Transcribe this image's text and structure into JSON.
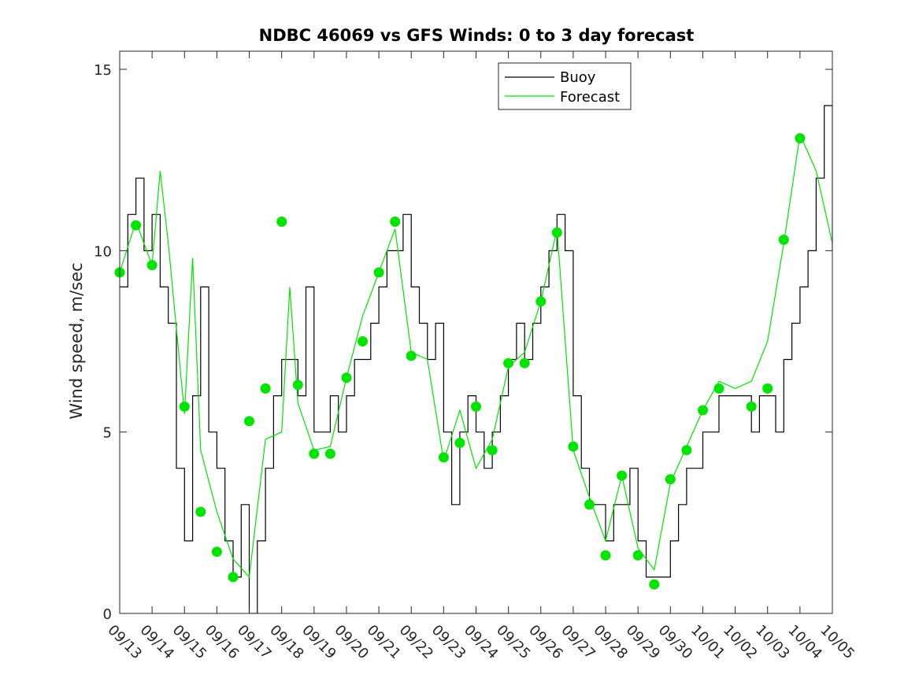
{
  "chart_data": {
    "type": "line",
    "title": "NDBC 46069 vs GFS Winds: 0 to 3 day forecast",
    "ylabel": "Wind speed, m/sec",
    "xlabel": "",
    "ylim": [
      0,
      15.5
    ],
    "yticks": [
      0,
      5,
      10,
      15
    ],
    "xlim": [
      "09/13",
      "10/05"
    ],
    "xticks": [
      "09/13",
      "09/14",
      "09/15",
      "09/16",
      "09/17",
      "09/18",
      "09/19",
      "09/20",
      "09/21",
      "09/22",
      "09/23",
      "09/24",
      "09/25",
      "09/26",
      "09/27",
      "09/28",
      "09/29",
      "09/30",
      "10/01",
      "10/02",
      "10/03",
      "10/04",
      "10/05"
    ],
    "legend_position": "top-right",
    "grid": false,
    "colors": {
      "buoy": "#000000",
      "forecast": "#00e400",
      "markers": "#00e400"
    },
    "series": [
      {
        "name": "Buoy",
        "style": "step-line",
        "x": [
          "09/13 00:00",
          "09/13 06:00",
          "09/13 12:00",
          "09/13 18:00",
          "09/14 00:00",
          "09/14 06:00",
          "09/14 12:00",
          "09/14 18:00",
          "09/15 00:00",
          "09/15 06:00",
          "09/15 12:00",
          "09/15 18:00",
          "09/16 00:00",
          "09/16 06:00",
          "09/16 12:00",
          "09/16 18:00",
          "09/17 00:00",
          "09/17 06:00",
          "09/17 12:00",
          "09/17 18:00",
          "09/18 00:00",
          "09/18 06:00",
          "09/18 12:00",
          "09/18 18:00",
          "09/19 00:00",
          "09/19 06:00",
          "09/19 12:00",
          "09/19 18:00",
          "09/20 00:00",
          "09/20 06:00",
          "09/20 12:00",
          "09/20 18:00",
          "09/21 00:00",
          "09/21 06:00",
          "09/21 12:00",
          "09/21 18:00",
          "09/22 00:00",
          "09/22 06:00",
          "09/22 12:00",
          "09/22 18:00",
          "09/23 00:00",
          "09/23 06:00",
          "09/23 12:00",
          "09/23 18:00",
          "09/24 00:00",
          "09/24 06:00",
          "09/24 12:00",
          "09/24 18:00",
          "09/25 00:00",
          "09/25 06:00",
          "09/25 12:00",
          "09/25 18:00",
          "09/26 00:00",
          "09/26 06:00",
          "09/26 12:00",
          "09/26 18:00",
          "09/27 00:00",
          "09/27 06:00",
          "09/27 12:00",
          "09/27 18:00",
          "09/28 00:00",
          "09/28 06:00",
          "09/28 12:00",
          "09/28 18:00",
          "09/29 00:00",
          "09/29 06:00",
          "09/29 12:00",
          "09/29 18:00",
          "09/30 00:00",
          "09/30 06:00",
          "09/30 12:00",
          "09/30 18:00",
          "10/01 00:00",
          "10/01 06:00",
          "10/01 12:00",
          "10/01 18:00",
          "10/02 00:00",
          "10/02 06:00",
          "10/02 12:00",
          "10/02 18:00",
          "10/03 00:00",
          "10/03 06:00",
          "10/03 12:00",
          "10/03 18:00",
          "10/04 00:00",
          "10/04 06:00",
          "10/04 12:00",
          "10/04 18:00",
          "10/05 00:00"
        ],
        "values": [
          9,
          11,
          12,
          10,
          11,
          9,
          8,
          4,
          2,
          6,
          9,
          5,
          4,
          2,
          1,
          3,
          0,
          2,
          4,
          6,
          7,
          7,
          6,
          9,
          5,
          5,
          6,
          5,
          6,
          7,
          7,
          8,
          9,
          10,
          10,
          11,
          9,
          8,
          7,
          8,
          5,
          3,
          5,
          6,
          5,
          4,
          5,
          6,
          7,
          8,
          7,
          8,
          9,
          10,
          11,
          10,
          6,
          4,
          3,
          3,
          2,
          3,
          3,
          4,
          2,
          1,
          1,
          1,
          2,
          3,
          4,
          4,
          5,
          5,
          6,
          6,
          6,
          6,
          5,
          6,
          6,
          5,
          7,
          8,
          9,
          10,
          12,
          14,
          10
        ]
      },
      {
        "name": "Forecast",
        "style": "line",
        "x": [
          "09/13 00:00",
          "09/13 12:00",
          "09/14 00:00",
          "09/14 06:00",
          "09/14 12:00",
          "09/15 00:00",
          "09/15 06:00",
          "09/15 12:00",
          "09/16 00:00",
          "09/16 12:00",
          "09/17 00:00",
          "09/17 12:00",
          "09/18 00:00",
          "09/18 06:00",
          "09/18 12:00",
          "09/19 00:00",
          "09/19 12:00",
          "09/20 00:00",
          "09/20 12:00",
          "09/21 00:00",
          "09/21 12:00",
          "09/22 00:00",
          "09/22 12:00",
          "09/23 00:00",
          "09/23 12:00",
          "09/24 00:00",
          "09/24 12:00",
          "09/25 00:00",
          "09/25 12:00",
          "09/26 00:00",
          "09/26 12:00",
          "09/27 00:00",
          "09/27 12:00",
          "09/28 00:00",
          "09/28 12:00",
          "09/29 00:00",
          "09/29 12:00",
          "09/30 00:00",
          "09/30 12:00",
          "10/01 00:00",
          "10/01 12:00",
          "10/02 00:00",
          "10/02 12:00",
          "10/03 00:00",
          "10/03 12:00",
          "10/04 00:00",
          "10/04 12:00",
          "10/05 00:00"
        ],
        "values": [
          9.4,
          10.8,
          9.6,
          12.2,
          10.2,
          5.5,
          9.8,
          4.5,
          2.8,
          1.5,
          1.0,
          4.8,
          5.0,
          9.0,
          5.8,
          4.5,
          4.6,
          6.5,
          8.2,
          9.4,
          10.6,
          7.2,
          7.0,
          4.2,
          5.6,
          4.0,
          4.8,
          6.8,
          7.2,
          8.6,
          10.6,
          4.5,
          3.2,
          2.0,
          3.8,
          1.8,
          1.2,
          3.6,
          4.6,
          5.6,
          6.4,
          6.2,
          6.4,
          7.5,
          10.2,
          13.2,
          12.2,
          10.2
        ]
      }
    ],
    "markers": {
      "name": "Forecast",
      "x": [
        "09/13 00:00",
        "09/13 12:00",
        "09/14 00:00",
        "09/15 00:00",
        "09/15 12:00",
        "09/16 00:00",
        "09/16 12:00",
        "09/17 00:00",
        "09/17 12:00",
        "09/18 00:00",
        "09/18 12:00",
        "09/19 00:00",
        "09/19 12:00",
        "09/20 00:00",
        "09/20 12:00",
        "09/21 00:00",
        "09/21 12:00",
        "09/22 00:00",
        "09/23 00:00",
        "09/23 12:00",
        "09/24 00:00",
        "09/24 12:00",
        "09/25 00:00",
        "09/25 12:00",
        "09/26 00:00",
        "09/26 12:00",
        "09/27 00:00",
        "09/27 12:00",
        "09/28 00:00",
        "09/28 12:00",
        "09/29 00:00",
        "09/29 12:00",
        "09/30 00:00",
        "09/30 12:00",
        "10/01 00:00",
        "10/01 12:00",
        "10/02 12:00",
        "10/03 00:00",
        "10/03 12:00",
        "10/04 00:00"
      ],
      "values": [
        9.4,
        10.7,
        9.6,
        5.7,
        2.8,
        1.7,
        1.0,
        5.3,
        6.2,
        10.8,
        6.3,
        4.4,
        4.4,
        6.5,
        7.5,
        9.4,
        10.8,
        7.1,
        4.3,
        4.7,
        5.7,
        4.5,
        6.9,
        6.9,
        8.6,
        10.5,
        4.6,
        3.0,
        1.6,
        3.8,
        1.6,
        0.8,
        3.7,
        4.5,
        5.6,
        6.2,
        5.7,
        6.2,
        10.3,
        13.1
      ]
    }
  }
}
